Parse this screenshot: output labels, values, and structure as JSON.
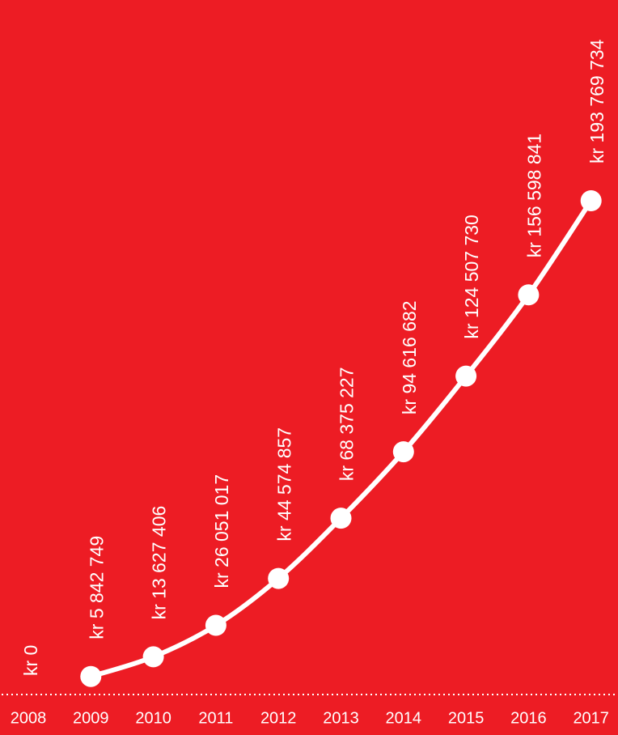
{
  "chart_data": {
    "type": "line",
    "categories": [
      "2008",
      "2009",
      "2010",
      "2011",
      "2012",
      "2013",
      "2014",
      "2015",
      "2016",
      "2017"
    ],
    "values": [
      0,
      5842749,
      13627406,
      26051017,
      44574857,
      68375227,
      94616682,
      124507730,
      156598841,
      193769734
    ],
    "value_labels": [
      "kr 0",
      "kr 5 842 749",
      "kr 13 627 406",
      "kr 26 051 017",
      "kr 44 574 857",
      "kr 68 375 227",
      "kr 94 616 682",
      "kr 124 507 730",
      "kr 156 598 841",
      "kr 193 769 734"
    ],
    "color": "#ffffff"
  }
}
